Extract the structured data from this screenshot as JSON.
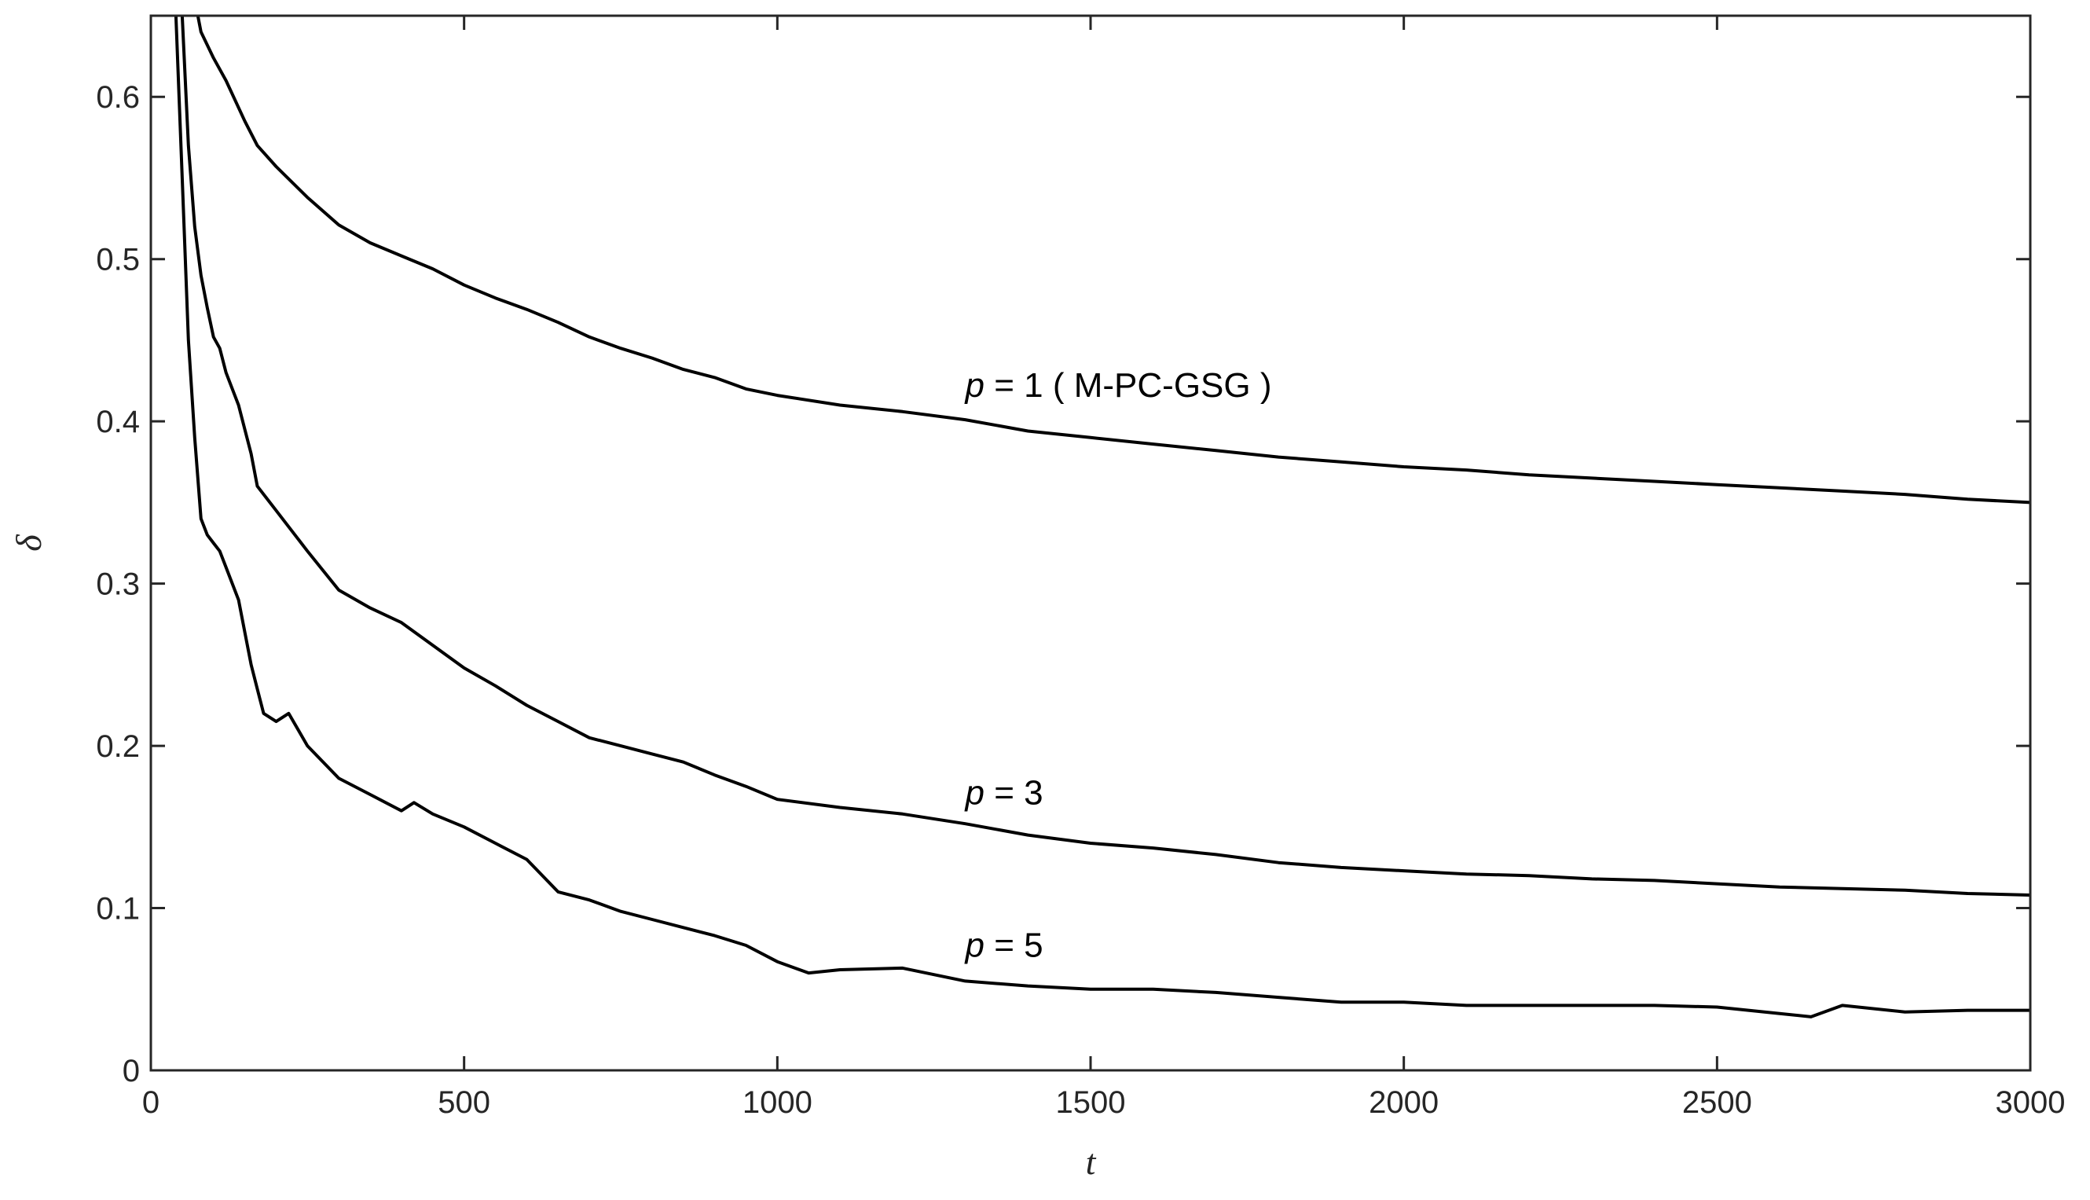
{
  "chart_data": {
    "type": "line",
    "title": "",
    "xlabel": "t",
    "ylabel": "δ",
    "xlim": [
      0,
      3000
    ],
    "ylim": [
      0,
      0.65
    ],
    "xticks": [
      0,
      500,
      1000,
      1500,
      2000,
      2500,
      3000
    ],
    "xtick_labels": [
      "0",
      "500",
      "1000",
      "1500",
      "2000",
      "2500",
      "3000"
    ],
    "yticks": [
      0,
      0.1,
      0.2,
      0.3,
      0.4,
      0.5,
      0.6
    ],
    "ytick_labels": [
      "0",
      "0.1",
      "0.2",
      "0.3",
      "0.4",
      "0.5",
      "0.6"
    ],
    "grid": false,
    "legend": "none",
    "line_color": "#000000",
    "series": [
      {
        "annotation": {
          "p": "p",
          "rest": " = 1 ( M-PC-GSG )",
          "x": 1300,
          "y": 0.415
        },
        "x": [
          75,
          80,
          90,
          100,
          120,
          150,
          170,
          200,
          250,
          300,
          350,
          400,
          450,
          500,
          550,
          600,
          650,
          700,
          750,
          800,
          850,
          900,
          950,
          1000,
          1100,
          1200,
          1300,
          1400,
          1500,
          1600,
          1700,
          1800,
          1900,
          2000,
          2100,
          2200,
          2300,
          2400,
          2500,
          2600,
          2700,
          2800,
          2900,
          3000
        ],
        "y": [
          0.65,
          0.64,
          0.632,
          0.624,
          0.61,
          0.585,
          0.57,
          0.557,
          0.538,
          0.521,
          0.51,
          0.502,
          0.494,
          0.484,
          0.476,
          0.469,
          0.461,
          0.452,
          0.445,
          0.439,
          0.432,
          0.427,
          0.42,
          0.416,
          0.41,
          0.406,
          0.401,
          0.394,
          0.39,
          0.386,
          0.382,
          0.378,
          0.375,
          0.372,
          0.37,
          0.367,
          0.365,
          0.363,
          0.361,
          0.359,
          0.357,
          0.355,
          0.352,
          0.35
        ]
      },
      {
        "annotation": {
          "p": "p",
          "rest": " = 3",
          "x": 1300,
          "y": 0.164
        },
        "x": [
          50,
          60,
          70,
          80,
          90,
          100,
          110,
          120,
          140,
          150,
          160,
          170,
          200,
          250,
          300,
          350,
          400,
          450,
          500,
          550,
          600,
          650,
          700,
          750,
          800,
          850,
          900,
          950,
          1000,
          1100,
          1200,
          1300,
          1400,
          1500,
          1600,
          1700,
          1800,
          1900,
          2000,
          2100,
          2200,
          2300,
          2400,
          2500,
          2600,
          2700,
          2800,
          2900,
          3000
        ],
        "y": [
          0.65,
          0.57,
          0.52,
          0.49,
          0.47,
          0.452,
          0.445,
          0.43,
          0.41,
          0.395,
          0.38,
          0.36,
          0.345,
          0.32,
          0.296,
          0.285,
          0.276,
          0.262,
          0.248,
          0.237,
          0.225,
          0.215,
          0.205,
          0.2,
          0.195,
          0.19,
          0.182,
          0.175,
          0.167,
          0.162,
          0.158,
          0.152,
          0.145,
          0.14,
          0.137,
          0.133,
          0.128,
          0.125,
          0.123,
          0.121,
          0.12,
          0.118,
          0.117,
          0.115,
          0.113,
          0.112,
          0.111,
          0.109,
          0.108
        ]
      },
      {
        "annotation": {
          "p": "p",
          "rest": " = 5",
          "x": 1300,
          "y": 0.07
        },
        "x": [
          40,
          50,
          60,
          70,
          80,
          90,
          100,
          110,
          120,
          140,
          150,
          160,
          170,
          180,
          200,
          220,
          250,
          300,
          350,
          400,
          420,
          450,
          500,
          550,
          600,
          650,
          700,
          750,
          800,
          850,
          900,
          950,
          1000,
          1050,
          1100,
          1200,
          1300,
          1400,
          1500,
          1600,
          1700,
          1800,
          1900,
          2000,
          2100,
          2200,
          2300,
          2400,
          2500,
          2600,
          2650,
          2700,
          2800,
          2900,
          3000
        ],
        "y": [
          0.65,
          0.55,
          0.45,
          0.39,
          0.34,
          0.33,
          0.325,
          0.32,
          0.31,
          0.29,
          0.27,
          0.25,
          0.235,
          0.22,
          0.215,
          0.22,
          0.2,
          0.18,
          0.17,
          0.16,
          0.165,
          0.158,
          0.15,
          0.14,
          0.13,
          0.11,
          0.105,
          0.098,
          0.093,
          0.088,
          0.083,
          0.077,
          0.067,
          0.06,
          0.062,
          0.063,
          0.055,
          0.052,
          0.05,
          0.05,
          0.048,
          0.045,
          0.042,
          0.042,
          0.04,
          0.04,
          0.04,
          0.04,
          0.039,
          0.035,
          0.033,
          0.04,
          0.036,
          0.037,
          0.037
        ]
      }
    ]
  }
}
